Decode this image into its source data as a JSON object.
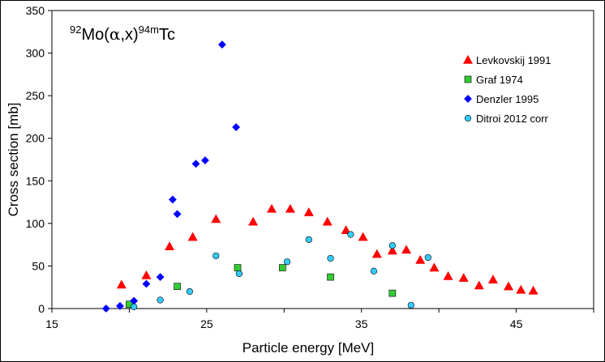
{
  "chart_data": {
    "type": "scatter",
    "title_parts": {
      "sup1": "92",
      "main": "Mo(",
      "alpha": "α",
      "rest": ",x)",
      "sup2": "94m",
      "end": "Tc"
    },
    "xlabel": "Particle  energy [MeV]",
    "ylabel": "Cross section [mb]",
    "xlim": [
      15,
      50
    ],
    "ylim": [
      0,
      350
    ],
    "xticks": [
      15,
      25,
      35,
      45
    ],
    "yticks": [
      0,
      50,
      100,
      150,
      200,
      250,
      300,
      350
    ],
    "legend_position": "top-right",
    "grid": false,
    "series": [
      {
        "name": "Levkovskij 1991",
        "marker": "triangle",
        "color": "#ff0000",
        "points": [
          [
            19.5,
            28
          ],
          [
            21.1,
            39
          ],
          [
            22.6,
            73
          ],
          [
            24.1,
            84
          ],
          [
            25.6,
            105
          ],
          [
            28.0,
            102
          ],
          [
            29.2,
            117
          ],
          [
            30.4,
            117
          ],
          [
            31.6,
            113
          ],
          [
            32.8,
            102
          ],
          [
            34.0,
            92
          ],
          [
            35.1,
            84
          ],
          [
            36.0,
            64
          ],
          [
            37.0,
            68
          ],
          [
            37.9,
            69
          ],
          [
            38.8,
            57
          ],
          [
            39.7,
            48
          ],
          [
            40.6,
            38
          ],
          [
            41.6,
            36
          ],
          [
            42.6,
            27
          ],
          [
            43.5,
            34
          ],
          [
            44.5,
            26
          ],
          [
            45.3,
            22
          ],
          [
            46.1,
            21
          ]
        ]
      },
      {
        "name": "Graf 1974",
        "marker": "square",
        "color": "#33cc33",
        "points": [
          [
            20.0,
            5
          ],
          [
            23.1,
            26
          ],
          [
            27.0,
            48
          ],
          [
            29.9,
            48
          ],
          [
            33.0,
            37
          ],
          [
            37.0,
            18
          ]
        ]
      },
      {
        "name": "Denzler 1995",
        "marker": "diamond",
        "color": "#0000ff",
        "points": [
          [
            18.5,
            0
          ],
          [
            19.4,
            3
          ],
          [
            20.3,
            9
          ],
          [
            21.1,
            29
          ],
          [
            22.0,
            37
          ],
          [
            22.8,
            128
          ],
          [
            23.1,
            111
          ],
          [
            24.3,
            170
          ],
          [
            24.9,
            174
          ],
          [
            26.0,
            310
          ],
          [
            26.9,
            213
          ]
        ]
      },
      {
        "name": "Ditroi 2012 corr",
        "marker": "circle",
        "color": "#33ccff",
        "points": [
          [
            20.3,
            2
          ],
          [
            22.0,
            10
          ],
          [
            23.9,
            20
          ],
          [
            25.6,
            62
          ],
          [
            27.1,
            41
          ],
          [
            30.2,
            55
          ],
          [
            31.6,
            81
          ],
          [
            33.0,
            59
          ],
          [
            34.3,
            87
          ],
          [
            35.8,
            44
          ],
          [
            37.0,
            74
          ],
          [
            38.2,
            4
          ],
          [
            39.3,
            60
          ]
        ]
      }
    ]
  }
}
